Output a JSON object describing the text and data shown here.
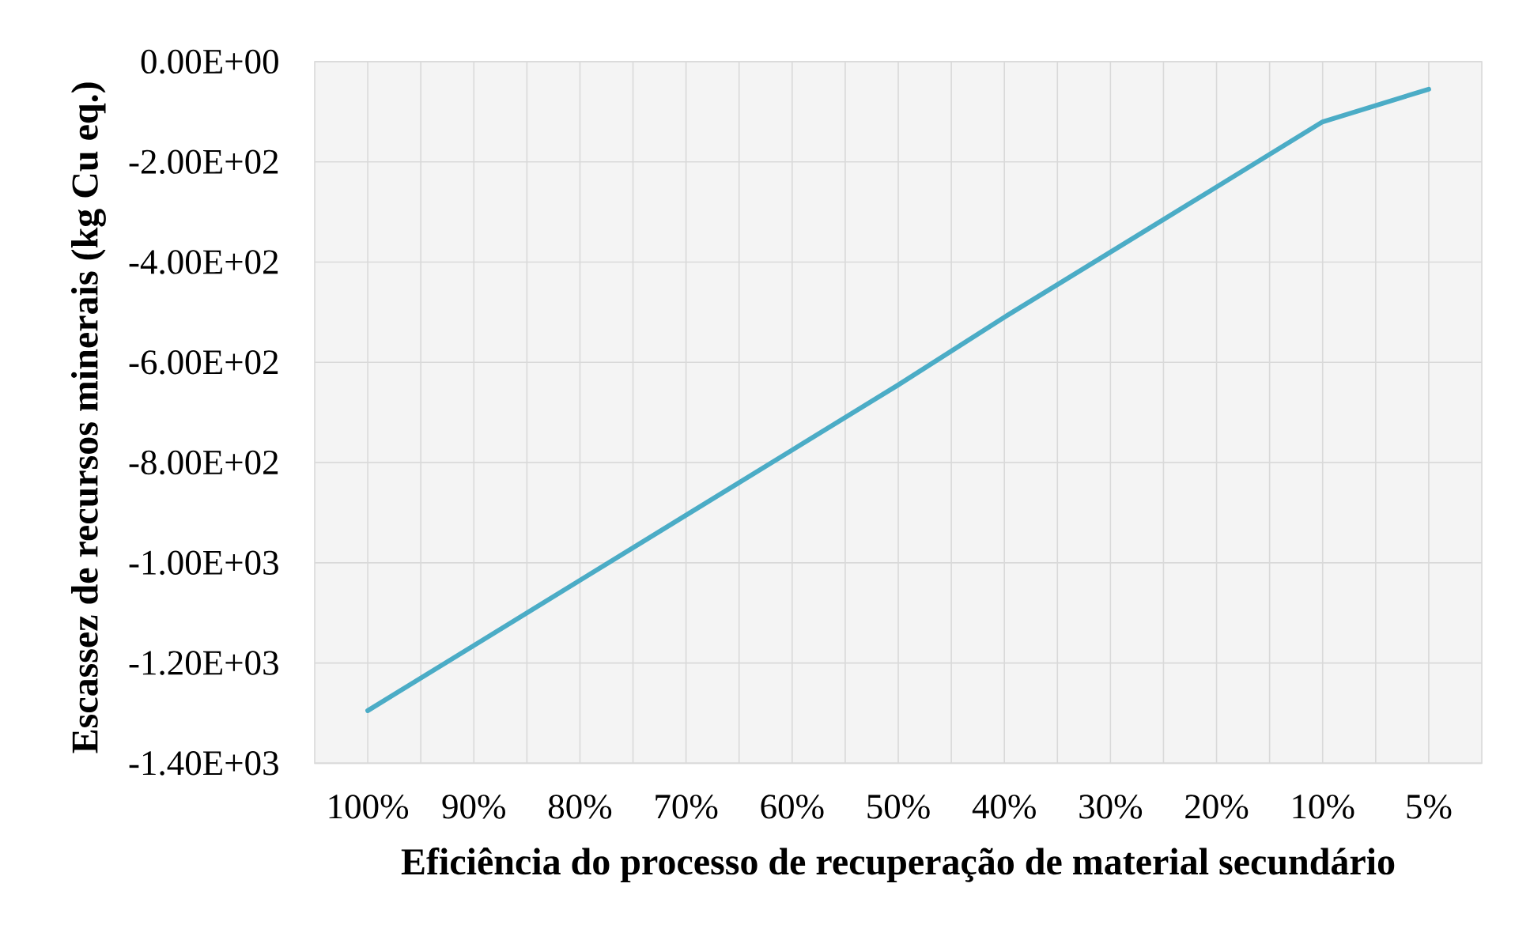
{
  "chart_data": {
    "type": "line",
    "xlabel": "Eficiência do processo de recuperação de material secundário",
    "ylabel": "Escassez de recursos  minerais (kg  Cu eq.)",
    "categories": [
      "100%",
      "90%",
      "80%",
      "70%",
      "60%",
      "50%",
      "40%",
      "30%",
      "20%",
      "10%",
      "5%"
    ],
    "series": [
      {
        "color": "#4bacc6",
        "values": [
          -1295,
          -1165,
          -1035,
          -905,
          -775,
          -645,
          -510,
          -380,
          -250,
          -120,
          -55
        ]
      }
    ],
    "ylim": [
      -1400,
      0
    ],
    "yticks": [
      {
        "value": -1400,
        "label": "-1.40E+03"
      },
      {
        "value": -1200,
        "label": "-1.20E+03"
      },
      {
        "value": -1000,
        "label": "-1.00E+03"
      },
      {
        "value": -800,
        "label": "-8.00E+02"
      },
      {
        "value": -600,
        "label": "-6.00E+02"
      },
      {
        "value": -400,
        "label": "-4.00E+02"
      },
      {
        "value": -200,
        "label": "-2.00E+02"
      },
      {
        "value": 0,
        "label": "0.00E+00"
      }
    ],
    "grid": true
  }
}
